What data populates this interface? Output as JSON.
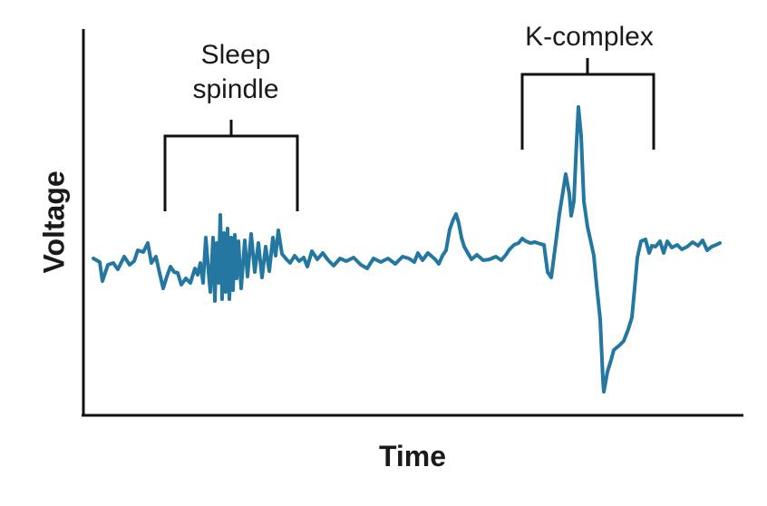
{
  "diagram": {
    "x_axis_label": "Time",
    "y_axis_label": "Voltage",
    "annotations": [
      {
        "id": "sleep-spindle",
        "text_line1": "Sleep",
        "text_line2": "spindle"
      },
      {
        "id": "k-complex",
        "text": "K-complex"
      }
    ],
    "colors": {
      "trace": "#2377a1",
      "axis": "#111111",
      "bracket": "#111111"
    }
  }
}
